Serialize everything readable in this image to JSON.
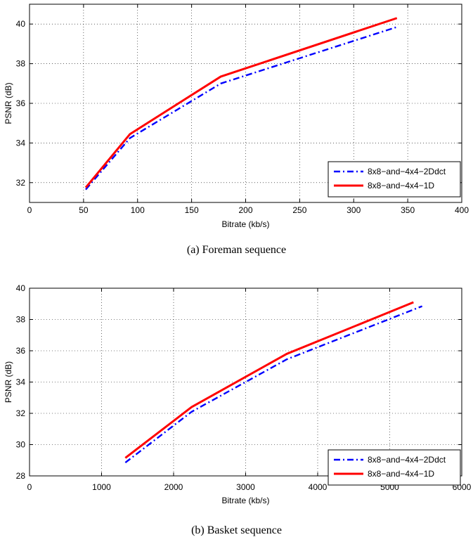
{
  "chart_data": [
    {
      "type": "line",
      "caption": "(a) Foreman sequence",
      "xlabel": "Bitrate (kb/s)",
      "ylabel": "PSNR (dB)",
      "xlim": [
        0,
        400
      ],
      "ylim": [
        31,
        41
      ],
      "xticks": [
        0,
        50,
        100,
        150,
        200,
        250,
        300,
        350,
        400
      ],
      "yticks": [
        32,
        34,
        36,
        38,
        40
      ],
      "grid": true,
      "legend_position": "lower-right",
      "series": [
        {
          "name": "8x8−and−4x4−2Ddct",
          "color": "#0000ff",
          "style": "dashdot",
          "x": [
            52,
            93,
            177,
            340
          ],
          "y": [
            31.65,
            34.25,
            37.0,
            39.85
          ]
        },
        {
          "name": "8x8−and−4x4−1D",
          "color": "#ff0000",
          "style": "solid",
          "x": [
            52,
            93,
            177,
            340
          ],
          "y": [
            31.75,
            34.45,
            37.35,
            40.3
          ]
        }
      ]
    },
    {
      "type": "line",
      "caption": "(b) Basket sequence",
      "xlabel": "Bitrate (kb/s)",
      "ylabel": "PSNR (dB)",
      "xlim": [
        0,
        6000
      ],
      "ylim": [
        28,
        40
      ],
      "xticks": [
        0,
        1000,
        2000,
        3000,
        4000,
        5000,
        6000
      ],
      "yticks": [
        28,
        30,
        32,
        34,
        36,
        38,
        40
      ],
      "grid": true,
      "legend_position": "lower-right",
      "series": [
        {
          "name": "8x8−and−4x4−2Ddct",
          "color": "#0000ff",
          "style": "dashdot",
          "x": [
            1330,
            2250,
            3570,
            5450
          ],
          "y": [
            28.85,
            32.1,
            35.45,
            38.85
          ]
        },
        {
          "name": "8x8−and−4x4−1D",
          "color": "#ff0000",
          "style": "solid",
          "x": [
            1330,
            2250,
            3570,
            5330
          ],
          "y": [
            29.15,
            32.4,
            35.8,
            39.1
          ]
        }
      ]
    }
  ]
}
